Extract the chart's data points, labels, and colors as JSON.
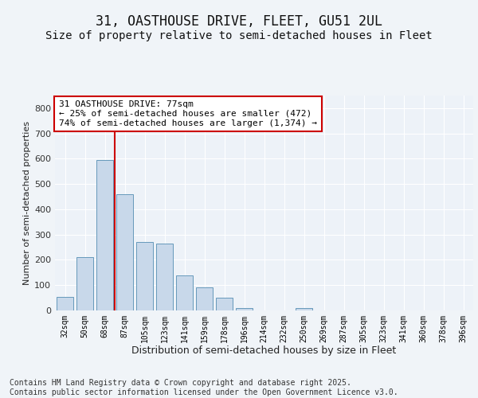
{
  "title": "31, OASTHOUSE DRIVE, FLEET, GU51 2UL",
  "subtitle": "Size of property relative to semi-detached houses in Fleet",
  "xlabel": "Distribution of semi-detached houses by size in Fleet",
  "ylabel": "Number of semi-detached properties",
  "categories": [
    "32sqm",
    "50sqm",
    "68sqm",
    "87sqm",
    "105sqm",
    "123sqm",
    "141sqm",
    "159sqm",
    "178sqm",
    "196sqm",
    "214sqm",
    "232sqm",
    "250sqm",
    "269sqm",
    "287sqm",
    "305sqm",
    "323sqm",
    "341sqm",
    "360sqm",
    "378sqm",
    "396sqm"
  ],
  "values": [
    55,
    210,
    595,
    460,
    270,
    265,
    140,
    90,
    50,
    10,
    0,
    0,
    8,
    0,
    0,
    0,
    0,
    0,
    0,
    0,
    0
  ],
  "bar_color": "#c8d8ea",
  "bar_edge_color": "#6699bb",
  "vline_x_index": 2,
  "vline_color": "#cc0000",
  "annotation_text": "31 OASTHOUSE DRIVE: 77sqm\n← 25% of semi-detached houses are smaller (472)\n74% of semi-detached houses are larger (1,374) →",
  "annotation_box_color": "#cc0000",
  "ylim": [
    0,
    850
  ],
  "yticks": [
    0,
    100,
    200,
    300,
    400,
    500,
    600,
    700,
    800
  ],
  "footer_text": "Contains HM Land Registry data © Crown copyright and database right 2025.\nContains public sector information licensed under the Open Government Licence v3.0.",
  "background_color": "#f0f4f8",
  "plot_background": "#edf2f8",
  "grid_color": "#ffffff",
  "title_fontsize": 12,
  "subtitle_fontsize": 10,
  "footer_fontsize": 7,
  "annotation_fontsize": 8
}
